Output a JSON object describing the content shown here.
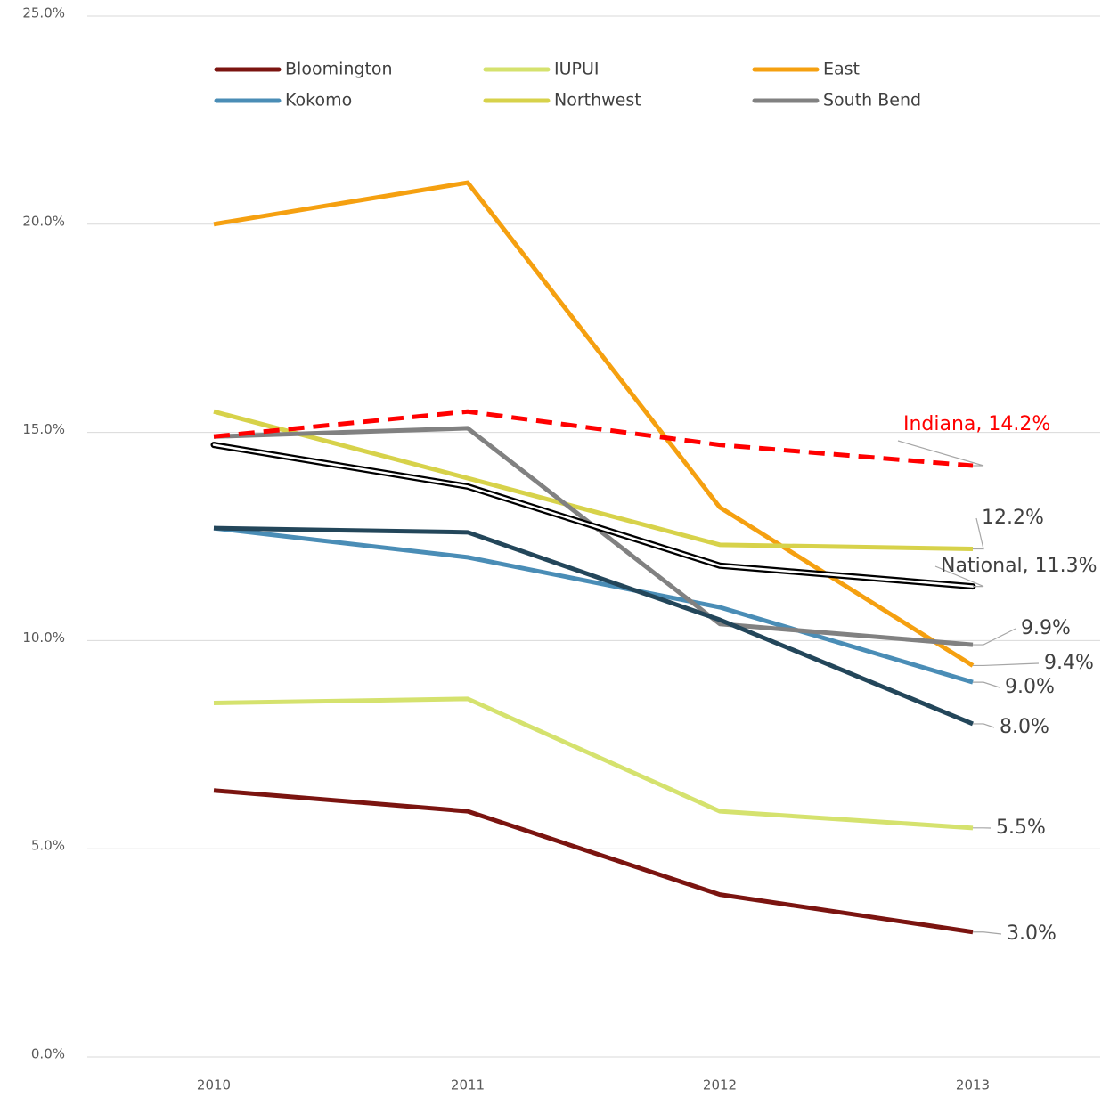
{
  "chart_data": {
    "type": "line",
    "categories": [
      "2010",
      "2011",
      "2012",
      "2013"
    ],
    "ylim": [
      0,
      25
    ],
    "yticks": [
      {
        "value": 0,
        "label": "0.0%"
      },
      {
        "value": 5,
        "label": "5.0%"
      },
      {
        "value": 10,
        "label": "10.0%"
      },
      {
        "value": 15,
        "label": "15.0%"
      },
      {
        "value": 20,
        "label": "20.0%"
      },
      {
        "value": 25,
        "label": "25.0%"
      }
    ],
    "grid": true,
    "legend": "top",
    "series": [
      {
        "name": "Bloomington",
        "color": "#7b1410",
        "values": [
          6.4,
          5.9,
          3.9,
          3.0
        ],
        "value_labels": [
          null,
          null,
          null,
          "3.0%"
        ]
      },
      {
        "name": "IUPUI",
        "color": "#d5e26e",
        "values": [
          8.5,
          8.6,
          5.9,
          5.5
        ],
        "value_labels": [
          null,
          null,
          null,
          "5.5%"
        ]
      },
      {
        "name": "East",
        "color": "#f5a010",
        "values": [
          20.0,
          21.0,
          13.2,
          9.4
        ],
        "value_labels": [
          null,
          null,
          null,
          "9.4%"
        ]
      },
      {
        "name": "Kokomo",
        "color": "#4a8db6",
        "values": [
          12.7,
          12.0,
          10.8,
          9.0
        ],
        "value_labels": [
          null,
          null,
          null,
          "9.0%"
        ]
      },
      {
        "name": "Northwest",
        "color": "#d7d24a",
        "values": [
          15.5,
          13.9,
          12.3,
          12.2
        ],
        "value_labels": [
          null,
          null,
          null,
          "12.2%"
        ]
      },
      {
        "name": "South Bend",
        "color": "#818181",
        "values": [
          14.9,
          15.1,
          10.4,
          9.9
        ],
        "value_labels": [
          null,
          null,
          null,
          "9.9%"
        ]
      },
      {
        "color": "#23465a",
        "values": [
          12.7,
          12.6,
          10.5,
          8.0
        ],
        "value_labels": [
          null,
          null,
          null,
          "8.0%"
        ],
        "in_legend": false
      },
      {
        "color": "#ff0000",
        "dashed": true,
        "values": [
          14.9,
          15.5,
          14.7,
          14.2
        ],
        "value_labels": [
          null,
          null,
          null,
          "Indiana, 14.2%"
        ],
        "in_legend": false
      },
      {
        "color": "#000000",
        "double": true,
        "values": [
          14.7,
          13.7,
          11.8,
          11.3
        ],
        "value_labels": [
          null,
          null,
          null,
          "National, 11.3%"
        ],
        "in_legend": false
      }
    ]
  }
}
